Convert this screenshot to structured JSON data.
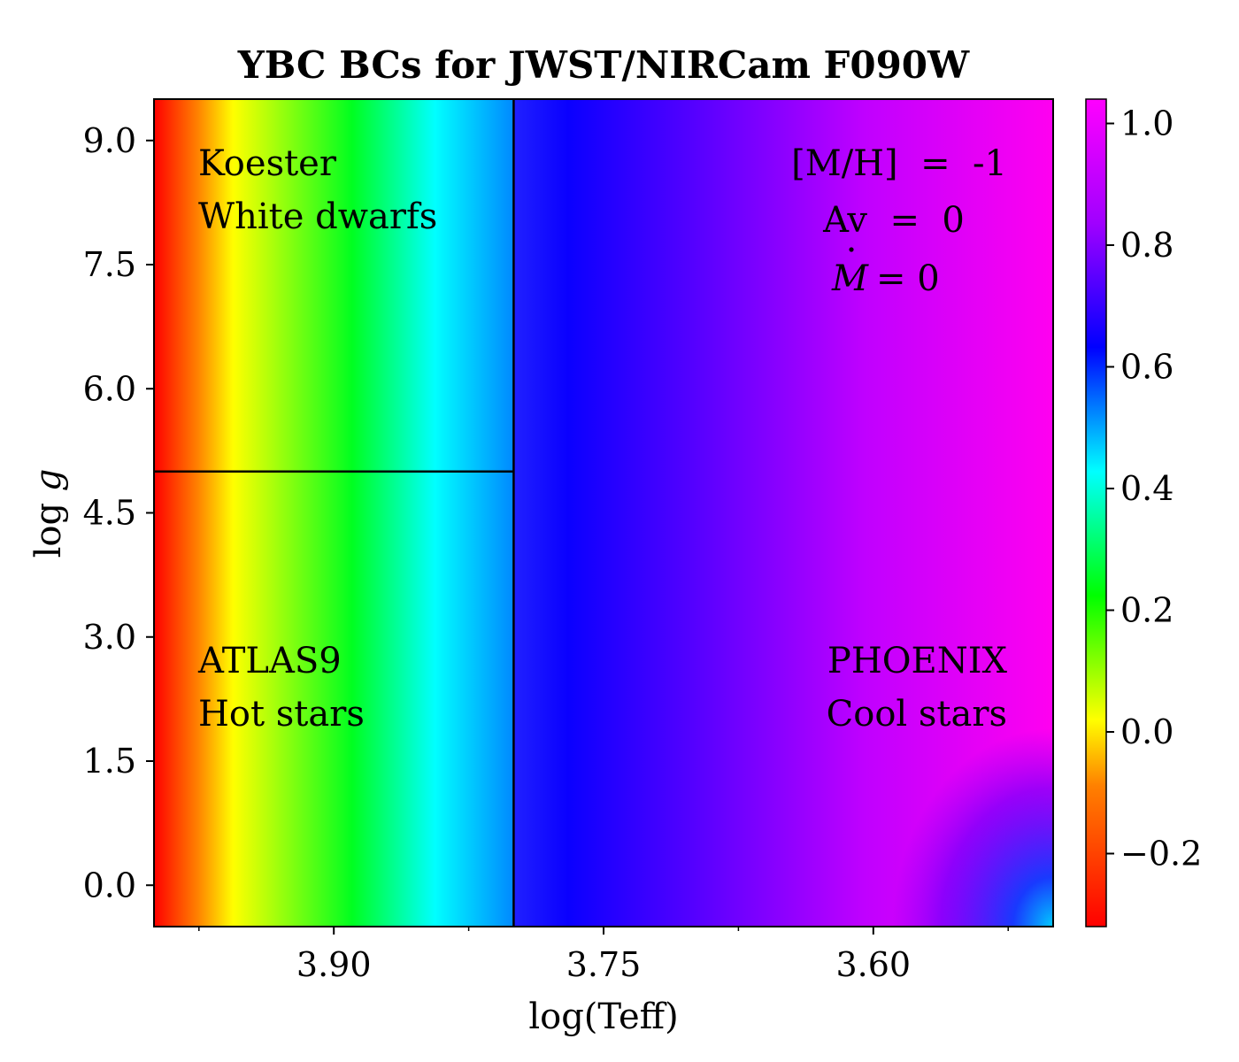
{
  "chart_data": {
    "type": "heatmap",
    "title": "YBC BCs for JWST/NIRCam F090W",
    "xlabel": "log(Teff)",
    "ylabel_text": "log ",
    "ylabel_var": "g",
    "xlim": [
      4.0,
      3.5
    ],
    "ylim": [
      -0.5,
      9.5
    ],
    "x_ticks": [
      3.9,
      3.75,
      3.6
    ],
    "x_tick_labels": [
      "3.90",
      "3.75",
      "3.60"
    ],
    "x_minor_ticks": [
      3.975,
      3.825,
      3.675,
      3.525
    ],
    "y_ticks": [
      0.0,
      1.5,
      3.0,
      4.5,
      6.0,
      7.5,
      9.0
    ],
    "y_tick_labels": [
      "0.0",
      "1.5",
      "3.0",
      "4.5",
      "6.0",
      "7.5",
      "9.0"
    ],
    "colorbar": {
      "range": [
        -0.32,
        1.04
      ],
      "ticks": [
        -0.2,
        0.0,
        0.2,
        0.4,
        0.6,
        0.8,
        1.0
      ],
      "tick_labels": [
        "−0.2",
        "0.0",
        "0.2",
        "0.4",
        "0.6",
        "0.8",
        "1.0"
      ],
      "colormap": "gist_rainbow"
    },
    "boundaries": {
      "teff_split": 3.8,
      "logg_split_hot": 5.0
    },
    "regions": [
      {
        "line1": "Koester",
        "line2": "White dwarfs"
      },
      {
        "line1": "ATLAS9",
        "line2": "Hot stars"
      },
      {
        "line1": "PHOENIX",
        "line2": "Cool stars"
      }
    ],
    "params": {
      "metallicity": "[M/H]  =  -1",
      "extinction": "Av  =  0",
      "mdot_symbol": "M",
      "mdot_value": "= 0"
    },
    "bc_profile_teff": [
      {
        "x": 4.0,
        "bc": -0.3
      },
      {
        "x": 3.95,
        "bc": 0.0
      },
      {
        "x": 3.9,
        "bc": 0.2
      },
      {
        "x": 3.85,
        "bc": 0.4
      },
      {
        "x": 3.8,
        "bc": 0.6
      },
      {
        "x": 3.75,
        "bc": 0.73
      },
      {
        "x": 3.7,
        "bc": 0.85
      },
      {
        "x": 3.65,
        "bc": 0.92
      },
      {
        "x": 3.6,
        "bc": 0.98
      },
      {
        "x": 3.55,
        "bc": 1.02
      },
      {
        "x": 3.5,
        "bc": 1.03
      }
    ]
  }
}
